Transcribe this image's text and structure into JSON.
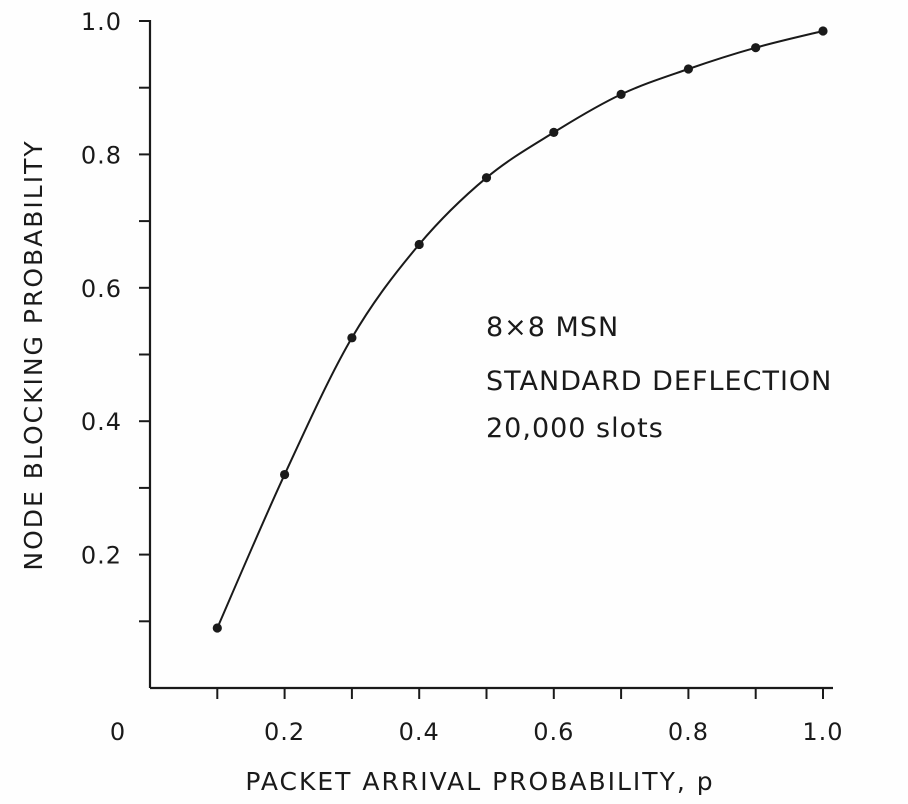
{
  "chart_data": {
    "type": "line",
    "xlabel": "PACKET ARRIVAL PROBABILITY, p",
    "ylabel": "NODE BLOCKING PROBABILITY",
    "xlim": [
      0,
      1.0
    ],
    "ylim": [
      0,
      1.0
    ],
    "x_origin_label": "0",
    "x_ticks": [
      0.1,
      0.2,
      0.3,
      0.4,
      0.5,
      0.6,
      0.7,
      0.8,
      0.9,
      1.0
    ],
    "x_tick_labels": [
      {
        "value": 0.2,
        "label": "0.2"
      },
      {
        "value": 0.4,
        "label": "0.4"
      },
      {
        "value": 0.6,
        "label": "0.6"
      },
      {
        "value": 0.8,
        "label": "0.8"
      },
      {
        "value": 1.0,
        "label": "1.0"
      }
    ],
    "y_ticks": [
      0.1,
      0.2,
      0.3,
      0.4,
      0.5,
      0.6,
      0.7,
      0.8,
      0.9,
      1.0
    ],
    "y_tick_labels": [
      {
        "value": 0.2,
        "label": "0.2"
      },
      {
        "value": 0.4,
        "label": "0.4"
      },
      {
        "value": 0.6,
        "label": "0.6"
      },
      {
        "value": 0.8,
        "label": "0.8"
      },
      {
        "value": 1.0,
        "label": "1.0"
      }
    ],
    "annotations": [
      "8×8 MSN",
      "STANDARD DEFLECTION",
      "20,000 slots"
    ],
    "grid": false,
    "legend": "none",
    "colors": {
      "ink": "#1a1a1a",
      "background": "#fefefe"
    },
    "series": [
      {
        "x": [
          0.1,
          0.2,
          0.3,
          0.4,
          0.5,
          0.6,
          0.7,
          0.8,
          0.9,
          1.0
        ],
        "y": [
          0.09,
          0.32,
          0.525,
          0.665,
          0.765,
          0.833,
          0.89,
          0.928,
          0.96,
          0.985
        ]
      }
    ]
  }
}
